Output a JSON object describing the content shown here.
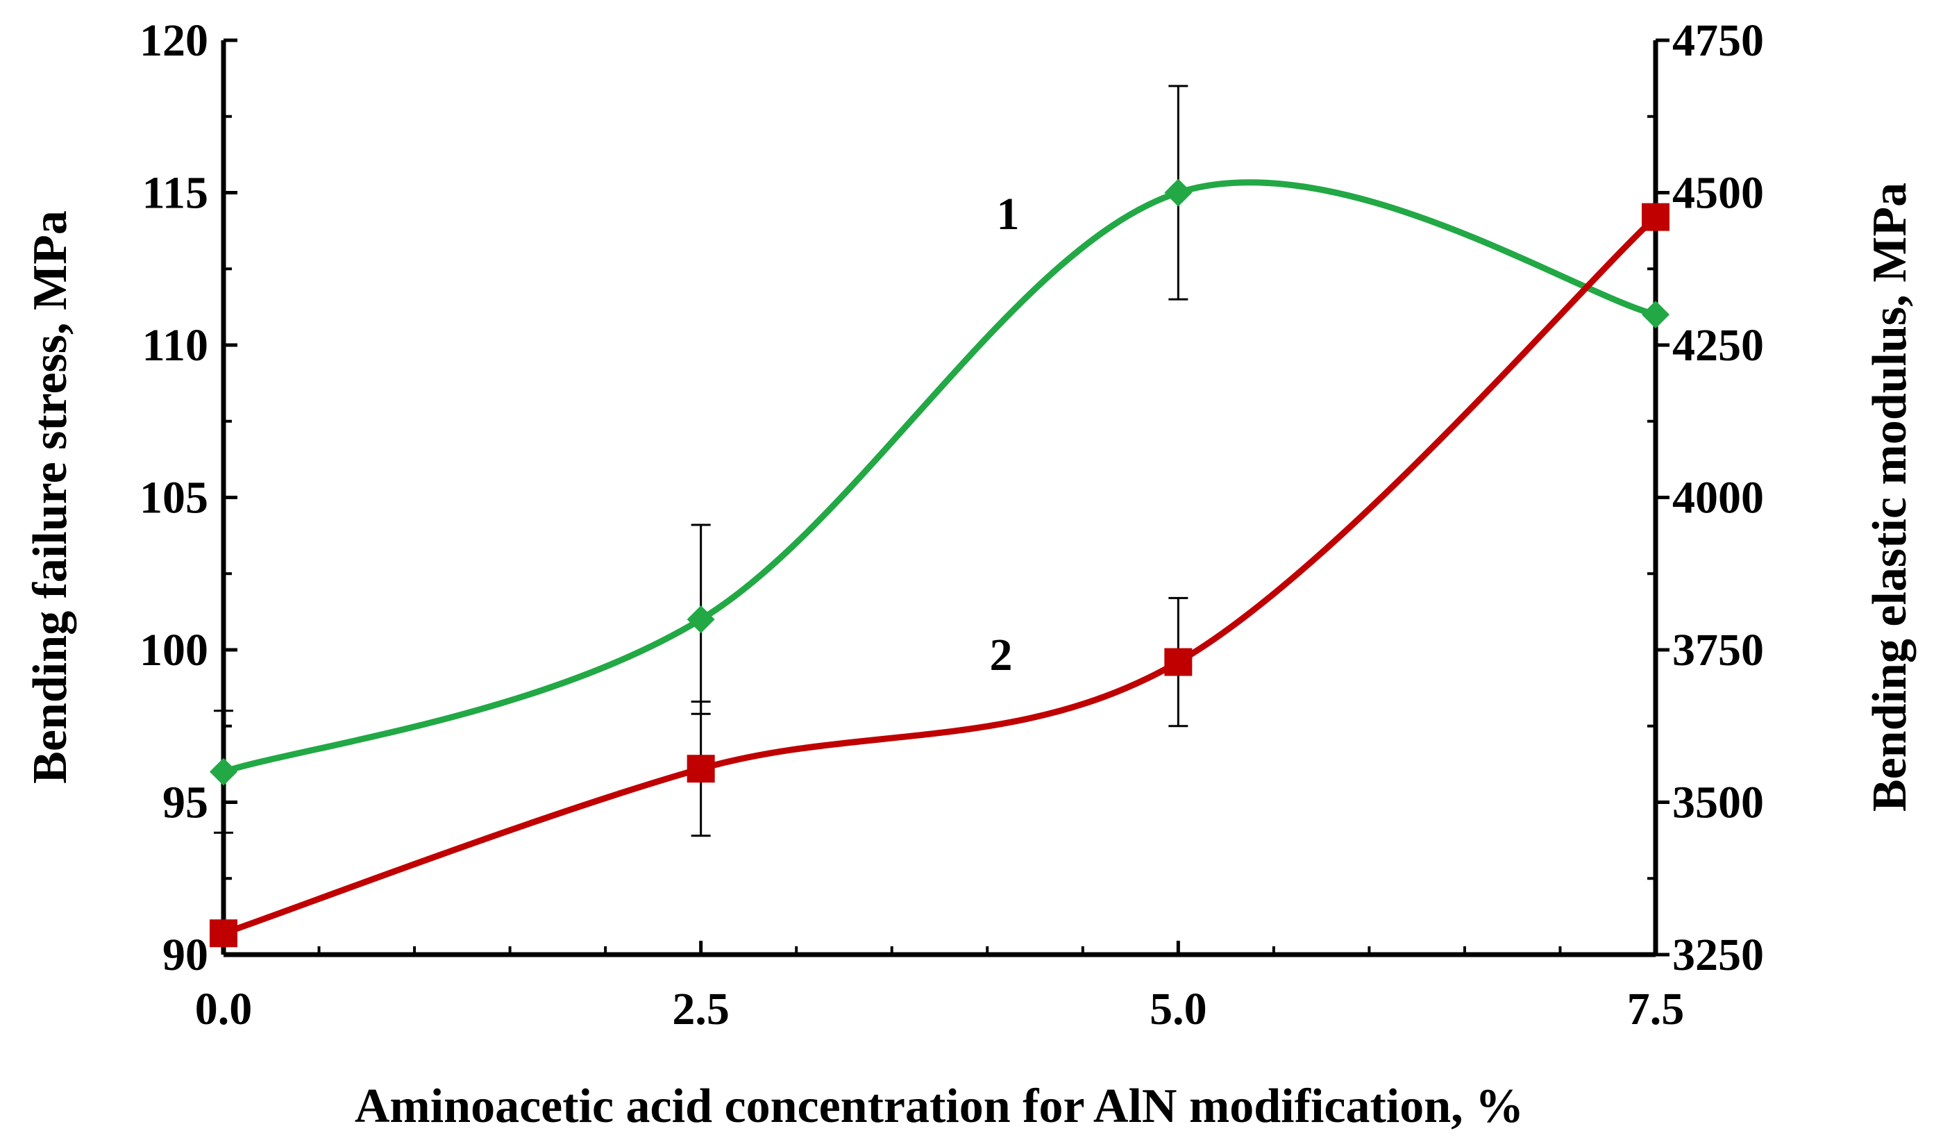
{
  "chart_data": {
    "type": "line",
    "xlabel": "Aminoacetic acid concentration for AlN modification, %",
    "ylabel_left": "Bending failure stress, MPa",
    "ylabel_right": "Bending elastic modulus, MPa",
    "x": [
      0.0,
      2.5,
      5.0,
      7.5
    ],
    "x_tick_labels": [
      "0.0",
      "2.5",
      "5.0",
      "7.5"
    ],
    "xlim": [
      0,
      7.5
    ],
    "ylim_left": [
      90,
      120
    ],
    "ylim_right": [
      3250,
      4750
    ],
    "y_ticks_left": [
      "90",
      "95",
      "100",
      "105",
      "110",
      "115",
      "120"
    ],
    "y_ticks_right": [
      "3250",
      "3500",
      "3750",
      "4000",
      "4250",
      "4500",
      "4750"
    ],
    "grid": false,
    "legend": "none",
    "series": [
      {
        "label": "1",
        "axis": "left",
        "marker": "diamond",
        "color": "#22a845",
        "y": [
          96.0,
          101.0,
          115.0,
          111.0
        ],
        "error": [
          2.0,
          3.1,
          3.5,
          0
        ]
      },
      {
        "label": "2",
        "axis": "right",
        "marker": "square",
        "color": "#c00000",
        "y": [
          3285,
          3555,
          3730,
          4460
        ],
        "error": [
          0,
          110,
          105,
          0
        ]
      }
    ]
  }
}
